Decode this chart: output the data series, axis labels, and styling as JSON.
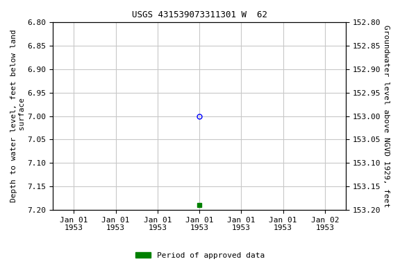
{
  "title": "USGS 431539073311301 W  62",
  "ylabel_left": "Depth to water level, feet below land\n surface",
  "ylabel_right": "Groundwater level above NGVD 1929, feet",
  "ylim_left": [
    6.8,
    7.2
  ],
  "ylim_right": [
    153.2,
    152.8
  ],
  "yticks_left": [
    6.8,
    6.85,
    6.9,
    6.95,
    7.0,
    7.05,
    7.1,
    7.15,
    7.2
  ],
  "yticks_right": [
    153.2,
    153.15,
    153.1,
    153.05,
    153.0,
    152.95,
    152.9,
    152.85,
    152.8
  ],
  "point_blue_x": 3.0,
  "point_blue_y": 7.0,
  "point_green_x": 3.0,
  "point_green_y": 7.19,
  "n_xticks": 7,
  "xtick_labels": [
    "Jan 01\n1953",
    "Jan 01\n1953",
    "Jan 01\n1953",
    "Jan 01\n1953",
    "Jan 01\n1953",
    "Jan 01\n1953",
    "Jan 02\n1953"
  ],
  "xlim": [
    -0.5,
    6.5
  ],
  "grid_color": "#c8c8c8",
  "bg_color": "white",
  "legend_label": "Period of approved data",
  "legend_color": "#008000",
  "title_fontsize": 9,
  "tick_fontsize": 8,
  "ylabel_fontsize": 8
}
